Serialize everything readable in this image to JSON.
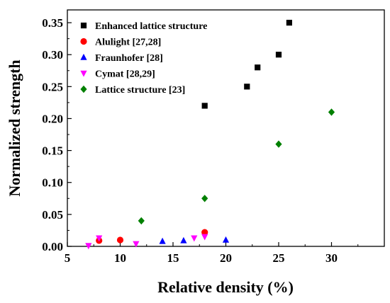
{
  "chart_data": {
    "type": "scatter",
    "xlabel": "Relative density (%)",
    "ylabel": "Normalized strength",
    "xlim": [
      5,
      35
    ],
    "ylim": [
      0,
      0.37
    ],
    "x_ticks": [
      "5",
      "10",
      "15",
      "20",
      "25",
      "30"
    ],
    "y_ticks": [
      "0.00",
      "0.05",
      "0.10",
      "0.15",
      "0.20",
      "0.25",
      "0.30",
      "0.35"
    ],
    "grid": false,
    "legend_position": "top-left",
    "series": [
      {
        "name": "Enhanced lattice structure",
        "marker": "square",
        "color": "#000000",
        "points": [
          [
            18,
            0.22
          ],
          [
            22,
            0.25
          ],
          [
            23,
            0.28
          ],
          [
            25,
            0.3
          ],
          [
            26,
            0.35
          ]
        ]
      },
      {
        "name": "Alulight [27,28]",
        "marker": "circle",
        "color": "#ff0000",
        "points": [
          [
            8,
            0.009
          ],
          [
            10,
            0.01
          ],
          [
            18,
            0.022
          ]
        ]
      },
      {
        "name": "Fraunhofer [28]",
        "marker": "triangle-up",
        "color": "#0000ff",
        "points": [
          [
            14,
            0.008
          ],
          [
            16,
            0.009
          ],
          [
            20,
            0.01
          ]
        ]
      },
      {
        "name": "Cymat [28,29]",
        "marker": "triangle-down",
        "color": "#ff00ff",
        "points": [
          [
            7,
            0.001
          ],
          [
            8,
            0.013
          ],
          [
            11.5,
            0.004
          ],
          [
            17,
            0.013
          ],
          [
            18,
            0.015
          ]
        ]
      },
      {
        "name": "Lattice structure [23]",
        "marker": "diamond",
        "color": "#008000",
        "points": [
          [
            12,
            0.04
          ],
          [
            18,
            0.075
          ],
          [
            25,
            0.16
          ],
          [
            30,
            0.21
          ]
        ]
      }
    ]
  }
}
